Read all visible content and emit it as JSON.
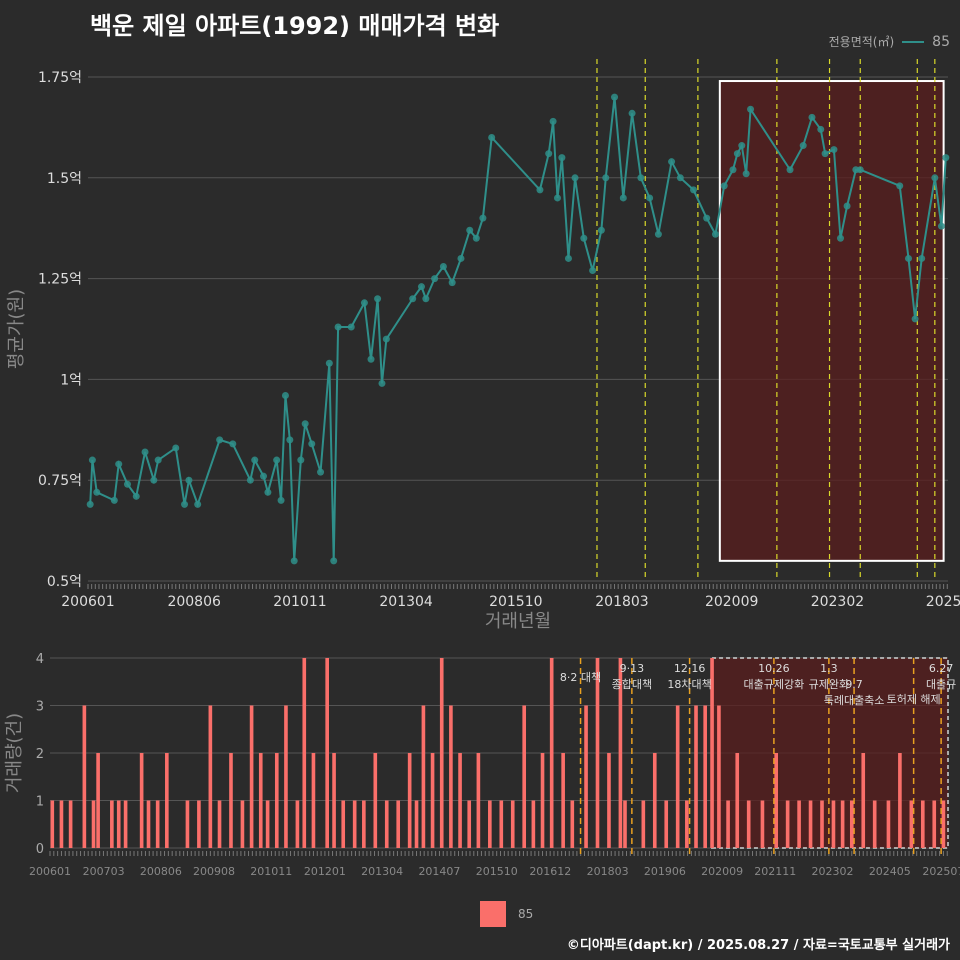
{
  "title": "백운 제일 아파트(1992) 매매가격 변화",
  "legend_top": {
    "label": "전용면적(㎡)",
    "value": "85"
  },
  "legend_bottom": {
    "value": "85"
  },
  "credit": "©디아파트(dapt.kr) / 2025.08.27 / 자료=국토교통부 실거래가",
  "colors": {
    "line": "#2f8f8a",
    "bar": "#fa6f6a",
    "vline": "#d9d92a",
    "vline_orange": "#e8a020",
    "shade": "#4a1f1f"
  },
  "chart_data": [
    {
      "type": "line",
      "title": "백운 제일 아파트(1992) 매매가격 변화",
      "xlabel": "거래년월",
      "ylabel": "평균가(원)",
      "ylim": [
        0.5,
        1.75
      ],
      "yticks": [
        0.5,
        0.75,
        1,
        1.25,
        1.5,
        1.75
      ],
      "ytick_labels": [
        "0.5억",
        "0.75억",
        "1억",
        "1.25억",
        "1.5억",
        "1.75억"
      ],
      "xlim": [
        2006.0,
        2025.6
      ],
      "xtick_labels": [
        "200601",
        "200806",
        "201011",
        "201304",
        "201510",
        "201803",
        "202009",
        "202302",
        "2025"
      ],
      "xtick_pos": [
        2006.0,
        2008.42,
        2010.83,
        2013.25,
        2015.75,
        2018.17,
        2020.67,
        2023.08,
        2025.5
      ],
      "series": [
        {
          "name": "85",
          "x": [
            2006.05,
            2006.1,
            2006.2,
            2006.6,
            2006.7,
            2006.9,
            2007.1,
            2007.3,
            2007.5,
            2007.6,
            2008.0,
            2008.2,
            2008.3,
            2008.5,
            2009.0,
            2009.3,
            2009.7,
            2009.8,
            2010.0,
            2010.1,
            2010.3,
            2010.4,
            2010.5,
            2010.6,
            2010.7,
            2010.85,
            2010.95,
            2011.1,
            2011.3,
            2011.5,
            2011.6,
            2011.7,
            2012.0,
            2012.3,
            2012.45,
            2012.6,
            2012.7,
            2012.8,
            2013.4,
            2013.6,
            2013.7,
            2013.9,
            2014.1,
            2014.3,
            2014.5,
            2014.7,
            2014.85,
            2015.0,
            2015.2,
            2016.3,
            2016.5,
            2016.6,
            2016.7,
            2016.8,
            2016.95,
            2017.1,
            2017.3,
            2017.5,
            2017.7,
            2017.8,
            2018.0,
            2018.2,
            2018.4,
            2018.6,
            2018.8,
            2019.0,
            2019.3,
            2019.5,
            2019.8,
            2020.1,
            2020.3,
            2020.5,
            2020.7,
            2020.8,
            2020.9,
            2021.0,
            2021.1,
            2022.0,
            2022.3,
            2022.5,
            2022.7,
            2022.8,
            2023.0,
            2023.15,
            2023.3,
            2023.5,
            2023.6,
            2024.5,
            2024.7,
            2024.85,
            2025.0,
            2025.3,
            2025.45,
            2025.55
          ],
          "values": [
            0.69,
            0.8,
            0.72,
            0.7,
            0.79,
            0.74,
            0.71,
            0.82,
            0.75,
            0.8,
            0.83,
            0.69,
            0.75,
            0.69,
            0.85,
            0.84,
            0.75,
            0.8,
            0.76,
            0.72,
            0.8,
            0.7,
            0.96,
            0.85,
            0.55,
            0.8,
            0.89,
            0.84,
            0.77,
            1.04,
            0.55,
            1.13,
            1.13,
            1.19,
            1.05,
            1.2,
            0.99,
            1.1,
            1.2,
            1.23,
            1.2,
            1.25,
            1.28,
            1.24,
            1.3,
            1.37,
            1.35,
            1.4,
            1.6,
            1.47,
            1.56,
            1.64,
            1.45,
            1.55,
            1.3,
            1.5,
            1.35,
            1.27,
            1.37,
            1.5,
            1.7,
            1.45,
            1.66,
            1.5,
            1.45,
            1.36,
            1.54,
            1.5,
            1.47,
            1.4,
            1.36,
            1.48,
            1.52,
            1.56,
            1.58,
            1.51,
            1.67,
            1.52,
            1.58,
            1.65,
            1.62,
            1.56,
            1.57,
            1.35,
            1.43,
            1.52,
            1.52,
            1.48,
            1.3,
            1.15,
            1.3,
            1.5,
            1.38,
            1.55
          ]
        }
      ],
      "annotation_box": {
        "x_from": 2020.4,
        "x_to": 2025.5,
        "y_from": 0.55,
        "y_to": 1.74
      },
      "vlines": [
        2017.6,
        2018.7,
        2019.9,
        2021.7,
        2022.9,
        2023.6,
        2024.9,
        2025.3
      ]
    },
    {
      "type": "bar",
      "xlabel": "",
      "ylabel": "거래량(건)",
      "ylim": [
        0,
        4
      ],
      "yticks": [
        0,
        1,
        2,
        3,
        4
      ],
      "ytick_labels": [
        "0",
        "1",
        "2",
        "3",
        "4"
      ],
      "xlim": [
        2006.0,
        2025.6
      ],
      "xtick_labels": [
        "200601",
        "200703",
        "200806",
        "200908",
        "201011",
        "201201",
        "201304",
        "201407",
        "201510",
        "201612",
        "201803",
        "201906",
        "202009",
        "202111",
        "202302",
        "202405",
        "202507"
      ],
      "xtick_pos": [
        2006.0,
        2007.17,
        2008.42,
        2009.58,
        2010.83,
        2012.0,
        2013.25,
        2014.5,
        2015.75,
        2016.92,
        2018.17,
        2019.42,
        2020.67,
        2021.83,
        2023.08,
        2024.33,
        2025.5
      ],
      "events": [
        {
          "x": 2017.58,
          "labels": [
            "8·2 대책"
          ]
        },
        {
          "x": 2018.7,
          "labels": [
            "9·13",
            "종합대책"
          ]
        },
        {
          "x": 2019.96,
          "labels": [
            "12·16",
            "18차대책"
          ]
        },
        {
          "x": 2021.8,
          "labels": [
            "10.26",
            "대출규제강화"
          ]
        },
        {
          "x": 2023.0,
          "labels": [
            "1.3",
            "규제완화"
          ]
        },
        {
          "x": 2023.55,
          "labels": [
            "9.7",
            "특례대출축소"
          ]
        },
        {
          "x": 2024.85,
          "labels": [
            "토허제 해제"
          ]
        },
        {
          "x": 2025.45,
          "labels": [
            "6.27",
            "대출규"
          ]
        }
      ],
      "series": [
        {
          "name": "85",
          "x": [
            2006.05,
            2006.25,
            2006.45,
            2006.75,
            2006.95,
            2007.05,
            2007.35,
            2007.5,
            2007.65,
            2008.0,
            2008.15,
            2008.35,
            2008.55,
            2009.0,
            2009.25,
            2009.5,
            2009.7,
            2009.95,
            2010.2,
            2010.4,
            2010.6,
            2010.75,
            2010.95,
            2011.15,
            2011.4,
            2011.55,
            2011.75,
            2012.05,
            2012.2,
            2012.4,
            2012.65,
            2012.85,
            2013.1,
            2013.35,
            2013.6,
            2013.85,
            2014.0,
            2014.15,
            2014.35,
            2014.55,
            2014.75,
            2014.95,
            2015.15,
            2015.35,
            2015.6,
            2015.85,
            2016.1,
            2016.35,
            2016.55,
            2016.75,
            2016.95,
            2017.2,
            2017.4,
            2017.7,
            2017.95,
            2018.2,
            2018.45,
            2018.55,
            2018.95,
            2019.2,
            2019.45,
            2019.7,
            2019.9,
            2020.1,
            2020.3,
            2020.45,
            2020.6,
            2020.8,
            2021.0,
            2021.25,
            2021.55,
            2021.85,
            2022.1,
            2022.35,
            2022.6,
            2022.85,
            2023.1,
            2023.3,
            2023.5,
            2023.75,
            2024.0,
            2024.3,
            2024.55,
            2024.8,
            2025.05,
            2025.3,
            2025.5
          ],
          "values": [
            1,
            1,
            1,
            3,
            1,
            2,
            1,
            1,
            1,
            2,
            1,
            1,
            2,
            1,
            1,
            3,
            1,
            2,
            1,
            3,
            2,
            1,
            2,
            3,
            1,
            4,
            2,
            4,
            2,
            1,
            1,
            1,
            2,
            1,
            1,
            2,
            1,
            3,
            2,
            4,
            3,
            2,
            1,
            2,
            1,
            1,
            1,
            3,
            1,
            2,
            4,
            2,
            1,
            3,
            4,
            2,
            4,
            1,
            1,
            2,
            1,
            3,
            1,
            3,
            3,
            4,
            3,
            1,
            2,
            1,
            1,
            2,
            1,
            1,
            1,
            1,
            1,
            1,
            1,
            2,
            1,
            1,
            2,
            1,
            1,
            1,
            1
          ]
        }
      ]
    }
  ]
}
